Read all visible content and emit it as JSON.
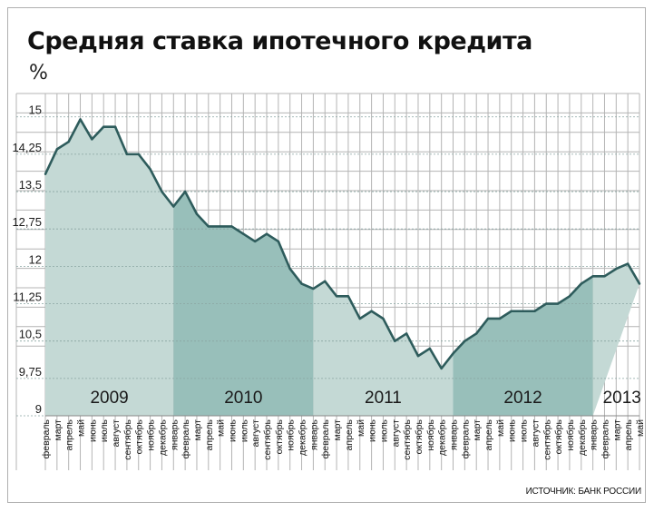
{
  "title": "Средняя ставка ипотечного кредита",
  "unit": "%",
  "source": "ИСТОЧНИК: БАНК РОССИИ",
  "colors": {
    "line": "#2e5c5c",
    "fill_light": "#c4d9d5",
    "fill_dark": "#98bfba",
    "grid": "#b4b4b4",
    "text": "#1a1a1a"
  },
  "chart_data": {
    "type": "area",
    "title": "Средняя ставка ипотечного кредита",
    "ylabel": "%",
    "ylim": [
      9,
      15.25
    ],
    "y_ticks": [
      "15",
      "14,25",
      "13,5",
      "12,75",
      "12",
      "11,25",
      "10,5",
      "9,75",
      "9"
    ],
    "y_tick_values": [
      15,
      14.25,
      13.5,
      12.75,
      12,
      11.25,
      10.5,
      9.75,
      9
    ],
    "grid": true,
    "years": [
      {
        "label": "2009",
        "start": 0,
        "end": 11,
        "shade": "light"
      },
      {
        "label": "2010",
        "start": 11,
        "end": 23,
        "shade": "dark"
      },
      {
        "label": "2011",
        "start": 23,
        "end": 35,
        "shade": "light"
      },
      {
        "label": "2012",
        "start": 35,
        "end": 47,
        "shade": "dark"
      },
      {
        "label": "2013",
        "start": 47,
        "end": 52,
        "shade": "light"
      }
    ],
    "x": [
      "февраль",
      "март",
      "апрель",
      "май",
      "июнь",
      "июль",
      "август",
      "сентябрь",
      "октябрь",
      "ноябрь",
      "декабрь",
      "январь",
      "февраль",
      "март",
      "апрель",
      "май",
      "июнь",
      "июль",
      "август",
      "сентябрь",
      "октябрь",
      "ноябрь",
      "декабрь",
      "январь",
      "февраль",
      "март",
      "апрель",
      "май",
      "июнь",
      "июль",
      "август",
      "сентябрь",
      "октябрь",
      "ноябрь",
      "декабрь",
      "январь",
      "февраль",
      "март",
      "апрель",
      "май",
      "июнь",
      "июль",
      "август",
      "сентябрь",
      "октябрь",
      "ноябрь",
      "декабрь",
      "январь",
      "февраль",
      "март",
      "апрель",
      "май"
    ],
    "values": [
      13.85,
      14.35,
      14.5,
      14.95,
      14.55,
      14.8,
      14.8,
      14.25,
      14.25,
      13.95,
      13.5,
      13.2,
      13.5,
      13.05,
      12.8,
      12.8,
      12.8,
      12.65,
      12.5,
      12.65,
      12.5,
      11.95,
      11.65,
      11.55,
      11.7,
      11.4,
      11.4,
      10.95,
      11.1,
      10.95,
      10.5,
      10.65,
      10.2,
      10.35,
      9.95,
      10.25,
      10.5,
      10.65,
      10.95,
      10.95,
      11.1,
      11.1,
      11.1,
      11.25,
      11.25,
      11.4,
      11.65,
      11.8,
      11.8,
      11.95,
      12.05,
      11.65
    ]
  }
}
